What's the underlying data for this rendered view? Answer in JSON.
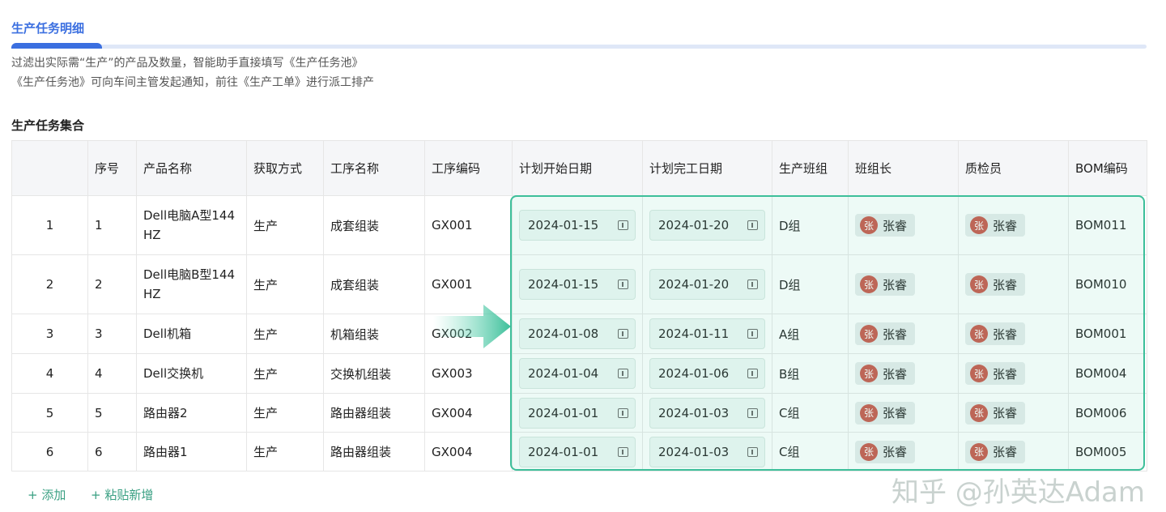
{
  "tab": {
    "title": "生产任务明细"
  },
  "description": [
    "过滤出实际需“生产”的产品及数量，智能助手直接填写《生产任务池》",
    "《生产任务池》可向车间主管发起通知，前往《生产工单》进行派工排产"
  ],
  "section_title": "生产任务集合",
  "columns": [
    "",
    "序号",
    "产品名称",
    "获取方式",
    "工序名称",
    "工序编码",
    "计划开始日期",
    "计划完工日期",
    "生产班组",
    "班组长",
    "质检员",
    "BOM编码"
  ],
  "rows": [
    {
      "idx": "1",
      "seq": "1",
      "name": "Dell电脑A型144HZ",
      "method": "生产",
      "process": "成套组装",
      "code": "GX001",
      "start": "2024-01-15",
      "end": "2024-01-20",
      "team": "D组",
      "leader": "张睿",
      "qc": "张睿",
      "bom": "BOM011"
    },
    {
      "idx": "2",
      "seq": "2",
      "name": "Dell电脑B型144HZ",
      "method": "生产",
      "process": "成套组装",
      "code": "GX001",
      "start": "2024-01-15",
      "end": "2024-01-20",
      "team": "D组",
      "leader": "张睿",
      "qc": "张睿",
      "bom": "BOM010"
    },
    {
      "idx": "3",
      "seq": "3",
      "name": "Dell机箱",
      "method": "生产",
      "process": "机箱组装",
      "code": "GX002",
      "start": "2024-01-08",
      "end": "2024-01-11",
      "team": "A组",
      "leader": "张睿",
      "qc": "张睿",
      "bom": "BOM001"
    },
    {
      "idx": "4",
      "seq": "4",
      "name": "Dell交换机",
      "method": "生产",
      "process": "交换机组装",
      "code": "GX003",
      "start": "2024-01-04",
      "end": "2024-01-06",
      "team": "B组",
      "leader": "张睿",
      "qc": "张睿",
      "bom": "BOM004"
    },
    {
      "idx": "5",
      "seq": "5",
      "name": "路由器2",
      "method": "生产",
      "process": "路由器组装",
      "code": "GX004",
      "start": "2024-01-01",
      "end": "2024-01-03",
      "team": "C组",
      "leader": "张睿",
      "qc": "张睿",
      "bom": "BOM006"
    },
    {
      "idx": "6",
      "seq": "6",
      "name": "路由器1",
      "method": "生产",
      "process": "路由器组装",
      "code": "GX004",
      "start": "2024-01-01",
      "end": "2024-01-03",
      "team": "C组",
      "leader": "张睿",
      "qc": "张睿",
      "bom": "BOM005"
    }
  ],
  "avatar_char": "张",
  "actions": {
    "add": "+ 添加",
    "paste_add": "+ 粘贴新增"
  },
  "watermark": "知乎 @孙英达Adam",
  "colors": {
    "accent": "#3b6fe0",
    "highlight": "#3dbf9a",
    "avatar": "#c9574a"
  }
}
